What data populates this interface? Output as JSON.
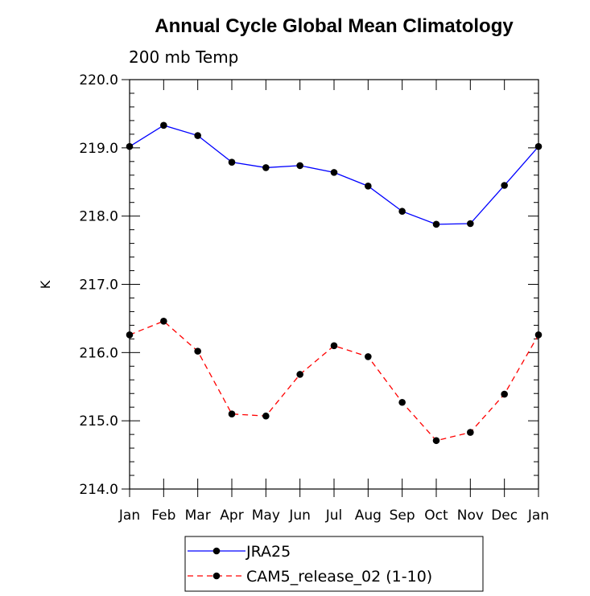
{
  "chart_data": {
    "type": "line",
    "title": "Annual Cycle Global Mean Climatology",
    "subtitle": "200 mb Temp",
    "ylabel": "K",
    "xlabel": "",
    "categories": [
      "Jan",
      "Feb",
      "Mar",
      "Apr",
      "May",
      "Jun",
      "Jul",
      "Aug",
      "Sep",
      "Oct",
      "Nov",
      "Dec",
      "Jan"
    ],
    "ylim": [
      214.0,
      220.0
    ],
    "yticks": [
      "214.0",
      "215.0",
      "216.0",
      "217.0",
      "218.0",
      "219.0",
      "220.0"
    ],
    "grid": false,
    "legend_position": "bottom",
    "series": [
      {
        "name": "JRA25",
        "color": "#0000ff",
        "dash": "solid",
        "values": [
          219.02,
          219.33,
          219.18,
          218.79,
          218.71,
          218.74,
          218.64,
          218.44,
          218.07,
          217.88,
          217.89,
          218.45,
          219.02
        ]
      },
      {
        "name": "CAM5_release_02 (1-10)",
        "color": "#ff0000",
        "dash": "dashed",
        "values": [
          216.26,
          216.46,
          216.02,
          215.1,
          215.07,
          215.68,
          216.1,
          215.94,
          215.27,
          214.71,
          214.83,
          215.39,
          216.26
        ]
      }
    ]
  }
}
